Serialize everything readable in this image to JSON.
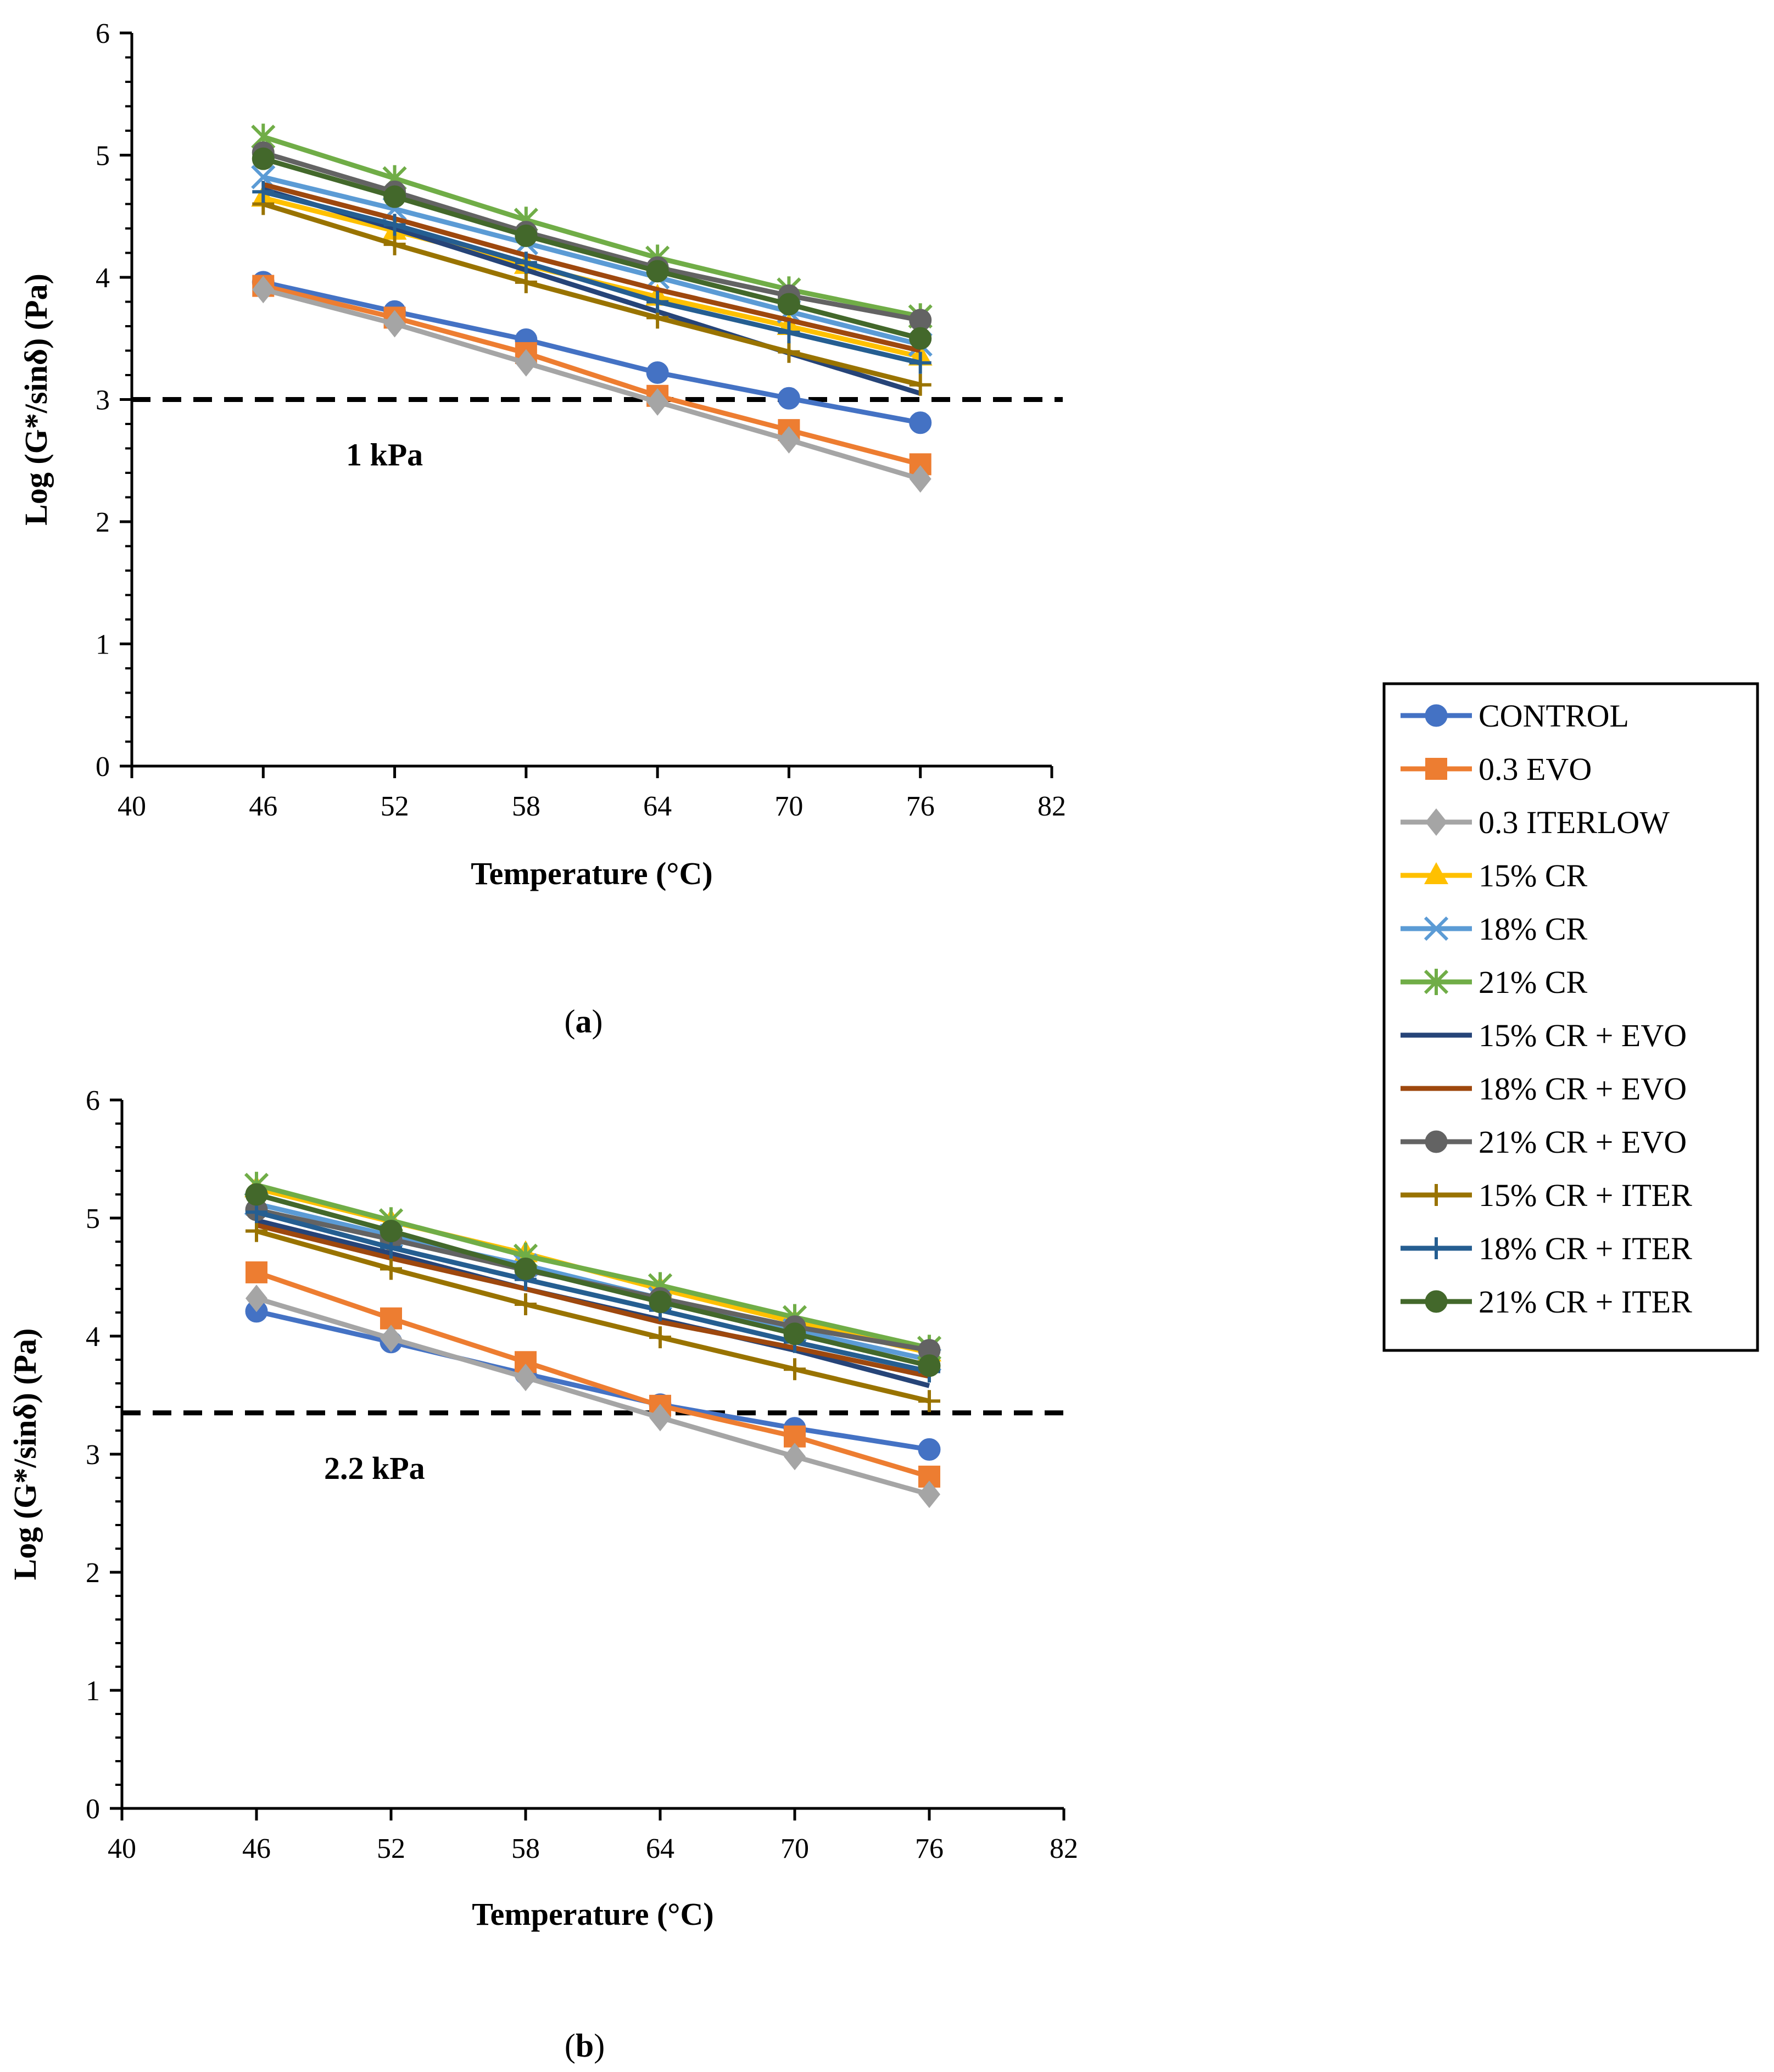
{
  "legend": {
    "position": "right",
    "entries": [
      {
        "name": "CONTROL",
        "color": "#4472C4",
        "marker": "circle"
      },
      {
        "name": "0.3 EVO",
        "color": "#ED7D31",
        "marker": "square"
      },
      {
        "name": "0.3 ITERLOW",
        "color": "#A5A5A5",
        "marker": "diamond"
      },
      {
        "name": "15% CR",
        "color": "#FFC000",
        "marker": "triangle"
      },
      {
        "name": "18% CR",
        "color": "#5B9BD5",
        "marker": "x"
      },
      {
        "name": "21% CR",
        "color": "#70AD47",
        "marker": "star"
      },
      {
        "name": "15% CR + EVO",
        "color": "#264478",
        "marker": "none"
      },
      {
        "name": "18% CR + EVO",
        "color": "#9E480E",
        "marker": "none"
      },
      {
        "name": "21% CR + EVO",
        "color": "#636363",
        "marker": "circle"
      },
      {
        "name": "15% CR + ITER",
        "color": "#997300",
        "marker": "plus"
      },
      {
        "name": "18% CR + ITER",
        "color": "#255E91",
        "marker": "plus"
      },
      {
        "name": "21% CR + ITER",
        "color": "#43682B",
        "marker": "circle"
      }
    ]
  },
  "chart_data": [
    {
      "type": "line",
      "panel_label": "(a)",
      "panel_letter": "a",
      "xlabel": "Temperature (°C)",
      "ylabel": "Log (G*/sinδ) (Pa)",
      "xlim": [
        40,
        82
      ],
      "ylim": [
        0,
        6
      ],
      "xticks": [
        40,
        46,
        52,
        58,
        64,
        70,
        76,
        82
      ],
      "yticks": [
        0,
        1,
        2,
        3,
        4,
        5,
        6
      ],
      "x": [
        46,
        52,
        58,
        64,
        70,
        76
      ],
      "threshold": {
        "y": 3.0,
        "label": "1 kPa",
        "style": "dashed",
        "color": "#000000"
      },
      "series": [
        {
          "name": "CONTROL",
          "values": [
            3.96,
            3.72,
            3.49,
            3.22,
            3.01,
            2.81
          ]
        },
        {
          "name": "0.3 EVO",
          "values": [
            3.93,
            3.67,
            3.38,
            3.03,
            2.75,
            2.47
          ]
        },
        {
          "name": "0.3 ITERLOW",
          "values": [
            3.9,
            3.62,
            3.3,
            2.98,
            2.67,
            2.35
          ]
        },
        {
          "name": "15% CR",
          "values": [
            4.65,
            4.38,
            4.1,
            3.84,
            3.6,
            3.35
          ]
        },
        {
          "name": "18% CR",
          "values": [
            4.82,
            4.56,
            4.28,
            4.0,
            3.72,
            3.45
          ]
        },
        {
          "name": "21% CR",
          "values": [
            5.15,
            4.81,
            4.47,
            4.16,
            3.9,
            3.68
          ]
        },
        {
          "name": "15% CR + EVO",
          "values": [
            4.72,
            4.4,
            4.06,
            3.72,
            3.38,
            3.05
          ]
        },
        {
          "name": "18% CR + EVO",
          "values": [
            4.76,
            4.48,
            4.18,
            3.9,
            3.65,
            3.4
          ]
        },
        {
          "name": "21% CR + EVO",
          "values": [
            5.02,
            4.7,
            4.37,
            4.08,
            3.85,
            3.65
          ]
        },
        {
          "name": "15% CR + ITER",
          "values": [
            4.6,
            4.27,
            3.96,
            3.67,
            3.39,
            3.12
          ]
        },
        {
          "name": "18% CR + ITER",
          "values": [
            4.7,
            4.43,
            4.12,
            3.8,
            3.55,
            3.3
          ]
        },
        {
          "name": "21% CR + ITER",
          "values": [
            4.97,
            4.66,
            4.34,
            4.05,
            3.78,
            3.5
          ]
        }
      ]
    },
    {
      "type": "line",
      "panel_label": "(b)",
      "panel_letter": "b",
      "xlabel": "Temperature (°C)",
      "ylabel": "Log (G*/sinδ) (Pa)",
      "xlim": [
        40,
        82
      ],
      "ylim": [
        0,
        6
      ],
      "xticks": [
        40,
        46,
        52,
        58,
        64,
        70,
        76,
        82
      ],
      "yticks": [
        0,
        1,
        2,
        3,
        4,
        5,
        6
      ],
      "x": [
        46,
        52,
        58,
        64,
        70,
        76
      ],
      "threshold": {
        "y": 3.35,
        "label": "2.2 kPa",
        "style": "dashed",
        "color": "#000000"
      },
      "series": [
        {
          "name": "CONTROL",
          "values": [
            4.21,
            3.95,
            3.68,
            3.42,
            3.22,
            3.04
          ]
        },
        {
          "name": "0.3 EVO",
          "values": [
            4.54,
            4.15,
            3.78,
            3.41,
            3.15,
            2.81
          ]
        },
        {
          "name": "0.3 ITERLOW",
          "values": [
            4.32,
            3.98,
            3.65,
            3.31,
            2.98,
            2.66
          ]
        },
        {
          "name": "15% CR",
          "values": [
            5.25,
            4.97,
            4.7,
            4.4,
            4.12,
            3.86
          ]
        },
        {
          "name": "18% CR",
          "values": [
            5.12,
            4.85,
            4.6,
            4.32,
            4.05,
            3.8
          ]
        },
        {
          "name": "21% CR",
          "values": [
            5.28,
            4.98,
            4.68,
            4.43,
            4.16,
            3.9
          ]
        },
        {
          "name": "15% CR + EVO",
          "values": [
            4.98,
            4.7,
            4.4,
            4.14,
            3.88,
            3.58
          ]
        },
        {
          "name": "18% CR + EVO",
          "values": [
            4.94,
            4.66,
            4.4,
            4.12,
            3.9,
            3.66
          ]
        },
        {
          "name": "21% CR + EVO",
          "values": [
            5.07,
            4.82,
            4.56,
            4.32,
            4.08,
            3.88
          ]
        },
        {
          "name": "15% CR + ITER",
          "values": [
            4.89,
            4.57,
            4.27,
            3.99,
            3.72,
            3.45
          ]
        },
        {
          "name": "18% CR + ITER",
          "values": [
            5.05,
            4.75,
            4.48,
            4.22,
            3.95,
            3.7
          ]
        },
        {
          "name": "21% CR + ITER",
          "values": [
            5.2,
            4.89,
            4.57,
            4.29,
            4.02,
            3.75
          ]
        }
      ]
    }
  ]
}
